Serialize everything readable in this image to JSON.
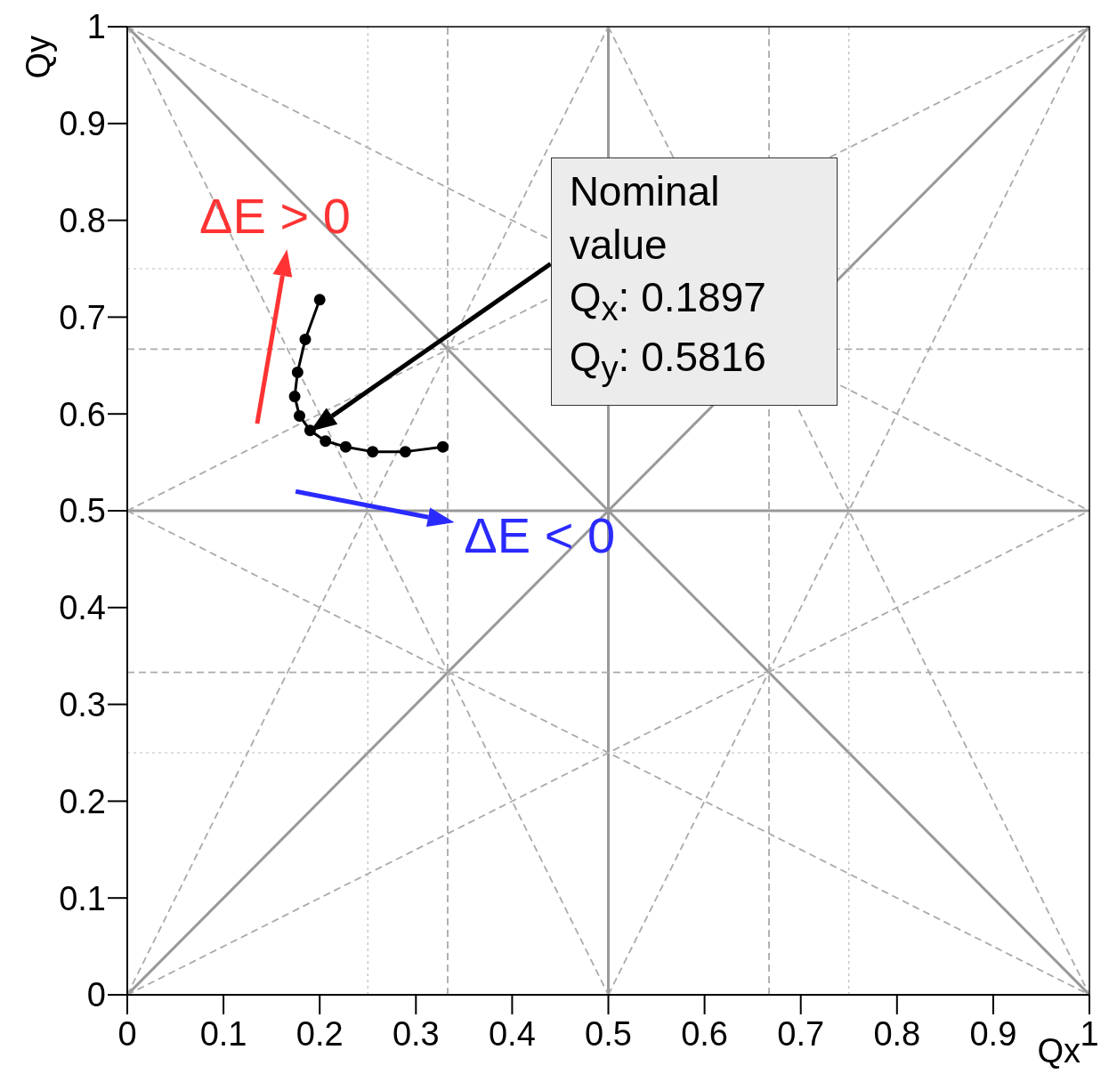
{
  "chart_data": {
    "type": "line",
    "xlabel": "Qx",
    "ylabel": "Qy",
    "xlim": [
      0,
      1
    ],
    "ylim": [
      0,
      1
    ],
    "xticks": [
      0,
      0.1,
      0.2,
      0.3,
      0.4,
      0.5,
      0.6,
      0.7,
      0.8,
      0.9,
      1
    ],
    "yticks": [
      0,
      0.1,
      0.2,
      0.3,
      0.4,
      0.5,
      0.6,
      0.7,
      0.8,
      0.9,
      1
    ],
    "series": [
      {
        "color": "#999999",
        "line_style": "solid",
        "marker": "none",
        "x": [
          0.5,
          0.5
        ],
        "values": [
          0,
          1
        ]
      },
      {
        "color": "#999999",
        "line_style": "solid",
        "marker": "none",
        "x": [
          0,
          1
        ],
        "values": [
          0.5,
          0.5
        ]
      },
      {
        "color": "#999999",
        "line_style": "solid",
        "marker": "none",
        "x": [
          0,
          1
        ],
        "values": [
          0,
          1
        ]
      },
      {
        "color": "#999999",
        "line_style": "solid",
        "marker": "none",
        "x": [
          0,
          1
        ],
        "values": [
          1,
          0
        ]
      },
      {
        "color": "#aaaaaa",
        "line_style": "dashed",
        "marker": "none",
        "x": [
          0.333,
          0.333
        ],
        "values": [
          0,
          1
        ]
      },
      {
        "color": "#aaaaaa",
        "line_style": "dashed",
        "marker": "none",
        "x": [
          0.667,
          0.667
        ],
        "values": [
          0,
          1
        ]
      },
      {
        "color": "#aaaaaa",
        "line_style": "dashed",
        "marker": "none",
        "x": [
          0,
          1
        ],
        "values": [
          0.333,
          0.333
        ]
      },
      {
        "color": "#aaaaaa",
        "line_style": "dashed",
        "marker": "none",
        "x": [
          0,
          1
        ],
        "values": [
          0.667,
          0.667
        ]
      },
      {
        "color": "#aaaaaa",
        "line_style": "dashed",
        "marker": "none",
        "x": [
          0,
          0.5
        ],
        "values": [
          1,
          0
        ]
      },
      {
        "color": "#aaaaaa",
        "line_style": "dashed",
        "marker": "none",
        "x": [
          0.5,
          1
        ],
        "values": [
          1,
          0
        ]
      },
      {
        "color": "#aaaaaa",
        "line_style": "dashed",
        "marker": "none",
        "x": [
          0,
          1
        ],
        "values": [
          0.5,
          0
        ]
      },
      {
        "color": "#aaaaaa",
        "line_style": "dashed",
        "marker": "none",
        "x": [
          0,
          1
        ],
        "values": [
          1,
          0.5
        ]
      },
      {
        "color": "#aaaaaa",
        "line_style": "dashed",
        "marker": "none",
        "x": [
          0,
          0.5
        ],
        "values": [
          0,
          1
        ]
      },
      {
        "color": "#aaaaaa",
        "line_style": "dashed",
        "marker": "none",
        "x": [
          0.5,
          1
        ],
        "values": [
          0,
          1
        ]
      },
      {
        "color": "#aaaaaa",
        "line_style": "dashed",
        "marker": "none",
        "x": [
          0,
          1
        ],
        "values": [
          0,
          0.5
        ]
      },
      {
        "color": "#aaaaaa",
        "line_style": "dashed",
        "marker": "none",
        "x": [
          0,
          1
        ],
        "values": [
          0.5,
          1
        ]
      },
      {
        "color": "#bbbbbb",
        "line_style": "dotted",
        "marker": "none",
        "x": [
          0.25,
          0.25
        ],
        "values": [
          0,
          1
        ]
      },
      {
        "color": "#bbbbbb",
        "line_style": "dotted",
        "marker": "none",
        "x": [
          0.75,
          0.75
        ],
        "values": [
          0,
          1
        ]
      },
      {
        "color": "#bbbbbb",
        "line_style": "dotted",
        "marker": "none",
        "x": [
          0,
          1
        ],
        "values": [
          0.25,
          0.25
        ]
      },
      {
        "color": "#bbbbbb",
        "line_style": "dotted",
        "marker": "none",
        "x": [
          0,
          1
        ],
        "values": [
          0.75,
          0.75
        ]
      },
      {
        "color": "#000000",
        "line_style": "solid",
        "marker": "circle",
        "x": [
          0.2,
          0.185,
          0.177,
          0.174,
          0.179,
          0.19,
          0.206,
          0.227,
          0.255,
          0.289,
          0.328
        ],
        "values": [
          0.718,
          0.677,
          0.643,
          0.618,
          0.598,
          0.583,
          0.572,
          0.566,
          0.561,
          0.561,
          0.566
        ]
      }
    ],
    "annotations": [
      "ΔE > 0",
      "ΔE < 0",
      "Nominal value",
      "Q$_{x}$: 0.1897",
      "Q$_{y}$: 0.5816"
    ]
  }
}
